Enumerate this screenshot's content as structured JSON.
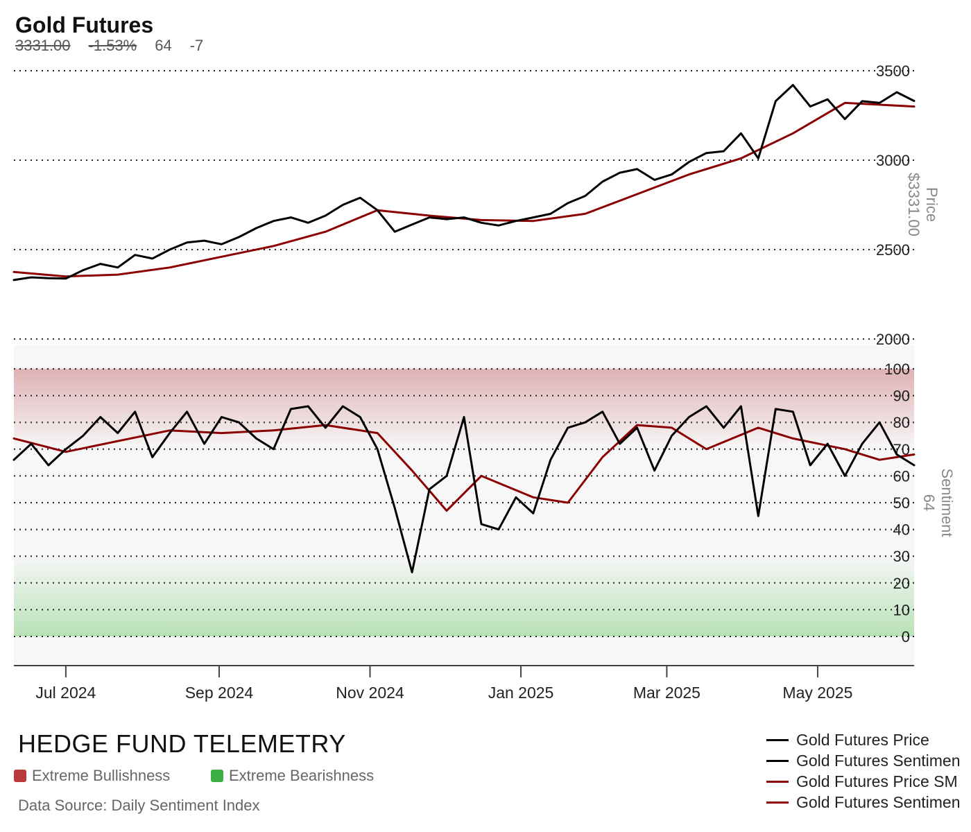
{
  "header": {
    "title": "Gold Futures",
    "price": "3331.00",
    "change_pct": "-1.53%",
    "sentiment": "64",
    "sentiment_change": "-7"
  },
  "footer": {
    "brand": "HEDGE FUND TELEMETRY",
    "extreme_bull_label": "Extreme Bullishness",
    "extreme_bear_label": "Extreme Bearishness",
    "source": "Data Source: Daily Sentiment Index"
  },
  "colors": {
    "price": "#000000",
    "sma": "#8b0000",
    "bull_zone": "#d9a0a3",
    "bear_zone": "#a9dca7",
    "bull_swatch": "#b8383b",
    "bear_swatch": "#3cb043"
  },
  "chart_data": {
    "type": "line",
    "x_ticks": [
      "Jul 2024",
      "Sep 2024",
      "Nov 2024",
      "Jan 2025",
      "Mar 2025",
      "May 2025"
    ],
    "x_range": [
      "2024-06-10",
      "2025-06-09"
    ],
    "legend": [
      "Gold Futures Price",
      "Gold Futures Sentimen",
      "Gold Futures Price SM",
      "Gold Futures Sentimen"
    ],
    "legend_placement": "bottom-right",
    "grid": "dotted horizontal",
    "price_panel": {
      "y_title": "Price",
      "y_value": "$3331.00",
      "ylim": [
        2000,
        3500
      ],
      "yticks": [
        2000,
        2500,
        3000,
        3500
      ],
      "series": [
        {
          "name": "Gold Futures Price",
          "color": "#000000",
          "points": [
            [
              "2024-06-10",
              2330
            ],
            [
              "2024-06-17",
              2345
            ],
            [
              "2024-06-24",
              2340
            ],
            [
              "2024-07-01",
              2338
            ],
            [
              "2024-07-08",
              2385
            ],
            [
              "2024-07-15",
              2420
            ],
            [
              "2024-07-22",
              2400
            ],
            [
              "2024-07-29",
              2470
            ],
            [
              "2024-08-05",
              2450
            ],
            [
              "2024-08-12",
              2500
            ],
            [
              "2024-08-19",
              2540
            ],
            [
              "2024-08-26",
              2550
            ],
            [
              "2024-09-02",
              2530
            ],
            [
              "2024-09-09",
              2570
            ],
            [
              "2024-09-16",
              2620
            ],
            [
              "2024-09-23",
              2660
            ],
            [
              "2024-09-30",
              2680
            ],
            [
              "2024-10-07",
              2650
            ],
            [
              "2024-10-14",
              2690
            ],
            [
              "2024-10-21",
              2750
            ],
            [
              "2024-10-28",
              2790
            ],
            [
              "2024-11-04",
              2720
            ],
            [
              "2024-11-11",
              2600
            ],
            [
              "2024-11-18",
              2640
            ],
            [
              "2024-11-25",
              2680
            ],
            [
              "2024-12-02",
              2670
            ],
            [
              "2024-12-09",
              2680
            ],
            [
              "2024-12-16",
              2650
            ],
            [
              "2024-12-23",
              2635
            ],
            [
              "2024-12-30",
              2660
            ],
            [
              "2025-01-06",
              2680
            ],
            [
              "2025-01-13",
              2700
            ],
            [
              "2025-01-20",
              2760
            ],
            [
              "2025-01-27",
              2800
            ],
            [
              "2025-02-03",
              2880
            ],
            [
              "2025-02-10",
              2930
            ],
            [
              "2025-02-17",
              2950
            ],
            [
              "2025-02-24",
              2890
            ],
            [
              "2025-03-03",
              2920
            ],
            [
              "2025-03-10",
              2990
            ],
            [
              "2025-03-17",
              3040
            ],
            [
              "2025-03-24",
              3050
            ],
            [
              "2025-03-31",
              3150
            ],
            [
              "2025-04-07",
              3010
            ],
            [
              "2025-04-14",
              3330
            ],
            [
              "2025-04-21",
              3420
            ],
            [
              "2025-04-28",
              3300
            ],
            [
              "2025-05-05",
              3340
            ],
            [
              "2025-05-12",
              3230
            ],
            [
              "2025-05-19",
              3330
            ],
            [
              "2025-05-26",
              3320
            ],
            [
              "2025-06-02",
              3380
            ],
            [
              "2025-06-09",
              3331
            ]
          ]
        },
        {
          "name": "Gold Futures Price SMA",
          "color": "#8b0000",
          "points": [
            [
              "2024-06-10",
              2375
            ],
            [
              "2024-07-01",
              2350
            ],
            [
              "2024-07-22",
              2360
            ],
            [
              "2024-08-12",
              2400
            ],
            [
              "2024-09-02",
              2460
            ],
            [
              "2024-09-23",
              2520
            ],
            [
              "2024-10-14",
              2600
            ],
            [
              "2024-11-04",
              2720
            ],
            [
              "2024-11-25",
              2690
            ],
            [
              "2024-12-16",
              2665
            ],
            [
              "2025-01-06",
              2660
            ],
            [
              "2025-01-27",
              2700
            ],
            [
              "2025-02-17",
              2810
            ],
            [
              "2025-03-10",
              2920
            ],
            [
              "2025-03-31",
              3010
            ],
            [
              "2025-04-21",
              3150
            ],
            [
              "2025-05-12",
              3320
            ],
            [
              "2025-06-09",
              3300
            ]
          ]
        }
      ]
    },
    "sentiment_panel": {
      "y_title": "Sentiment",
      "y_value": "64",
      "ylim": [
        0,
        100
      ],
      "yticks": [
        0,
        10,
        20,
        30,
        40,
        50,
        60,
        70,
        80,
        90,
        100
      ],
      "bull_zone": [
        70,
        100
      ],
      "bear_zone": [
        0,
        30
      ],
      "series": [
        {
          "name": "Gold Futures Sentiment",
          "color": "#000000",
          "points": [
            [
              "2024-06-10",
              66
            ],
            [
              "2024-06-17",
              72
            ],
            [
              "2024-06-24",
              64
            ],
            [
              "2024-07-01",
              70
            ],
            [
              "2024-07-08",
              75
            ],
            [
              "2024-07-15",
              82
            ],
            [
              "2024-07-22",
              76
            ],
            [
              "2024-07-29",
              84
            ],
            [
              "2024-08-05",
              67
            ],
            [
              "2024-08-12",
              76
            ],
            [
              "2024-08-19",
              84
            ],
            [
              "2024-08-26",
              72
            ],
            [
              "2024-09-02",
              82
            ],
            [
              "2024-09-09",
              80
            ],
            [
              "2024-09-16",
              74
            ],
            [
              "2024-09-23",
              70
            ],
            [
              "2024-09-30",
              85
            ],
            [
              "2024-10-07",
              86
            ],
            [
              "2024-10-14",
              78
            ],
            [
              "2024-10-21",
              86
            ],
            [
              "2024-10-28",
              82
            ],
            [
              "2024-11-04",
              70
            ],
            [
              "2024-11-11",
              48
            ],
            [
              "2024-11-18",
              24
            ],
            [
              "2024-11-25",
              55
            ],
            [
              "2024-12-02",
              60
            ],
            [
              "2024-12-09",
              82
            ],
            [
              "2024-12-16",
              42
            ],
            [
              "2024-12-23",
              40
            ],
            [
              "2024-12-30",
              52
            ],
            [
              "2025-01-06",
              46
            ],
            [
              "2025-01-13",
              66
            ],
            [
              "2025-01-20",
              78
            ],
            [
              "2025-01-27",
              80
            ],
            [
              "2025-02-03",
              84
            ],
            [
              "2025-02-10",
              72
            ],
            [
              "2025-02-17",
              78
            ],
            [
              "2025-02-24",
              62
            ],
            [
              "2025-03-03",
              75
            ],
            [
              "2025-03-10",
              82
            ],
            [
              "2025-03-17",
              86
            ],
            [
              "2025-03-24",
              78
            ],
            [
              "2025-03-31",
              86
            ],
            [
              "2025-04-07",
              45
            ],
            [
              "2025-04-14",
              85
            ],
            [
              "2025-04-21",
              84
            ],
            [
              "2025-04-28",
              64
            ],
            [
              "2025-05-05",
              72
            ],
            [
              "2025-05-12",
              60
            ],
            [
              "2025-05-19",
              72
            ],
            [
              "2025-05-26",
              80
            ],
            [
              "2025-06-02",
              68
            ],
            [
              "2025-06-09",
              64
            ]
          ]
        },
        {
          "name": "Gold Futures Sentiment SMA",
          "color": "#8b0000",
          "points": [
            [
              "2024-06-10",
              74
            ],
            [
              "2024-07-01",
              69
            ],
            [
              "2024-07-22",
              73
            ],
            [
              "2024-08-12",
              77
            ],
            [
              "2024-09-02",
              76
            ],
            [
              "2024-09-23",
              77
            ],
            [
              "2024-10-14",
              79
            ],
            [
              "2024-11-04",
              76
            ],
            [
              "2024-11-18",
              62
            ],
            [
              "2024-12-02",
              47
            ],
            [
              "2024-12-16",
              60
            ],
            [
              "2025-01-06",
              52
            ],
            [
              "2025-01-20",
              50
            ],
            [
              "2025-02-03",
              67
            ],
            [
              "2025-02-17",
              79
            ],
            [
              "2025-03-03",
              78
            ],
            [
              "2025-03-17",
              70
            ],
            [
              "2025-04-07",
              78
            ],
            [
              "2025-04-21",
              74
            ],
            [
              "2025-05-12",
              70
            ],
            [
              "2025-05-26",
              66
            ],
            [
              "2025-06-09",
              68
            ]
          ]
        }
      ]
    }
  }
}
